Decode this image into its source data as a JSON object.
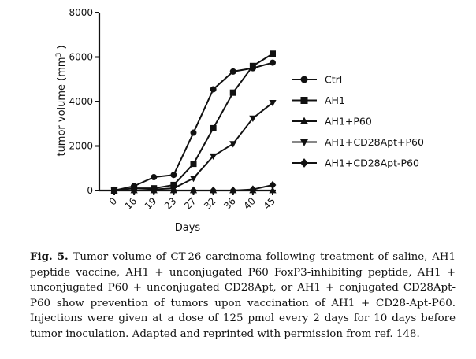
{
  "chart_data": {
    "type": "line",
    "xlabel": "Days",
    "ylabel": "tumor volume (mm",
    "ylabel_sup": "3",
    "ylabel_close": " )",
    "categories": [
      "0",
      "16",
      "19",
      "23",
      "27",
      "32",
      "36",
      "40",
      "45"
    ],
    "ylim": [
      0,
      8000
    ],
    "yticks": [
      0,
      2000,
      4000,
      6000,
      8000
    ],
    "ytick_labels": [
      "0",
      "2000",
      "4000",
      "6000",
      "8000"
    ],
    "legend_position": "right",
    "series": [
      {
        "name": "Ctrl",
        "marker": "circle",
        "values": [
          0,
          200,
          600,
          700,
          2600,
          4550,
          5350,
          5500,
          5750
        ]
      },
      {
        "name": "AH1",
        "marker": "square",
        "values": [
          0,
          100,
          100,
          250,
          1200,
          2800,
          4400,
          5600,
          6150
        ]
      },
      {
        "name": "AH1+P60",
        "marker": "triangle-up",
        "values": [
          0,
          0,
          0,
          0,
          0,
          0,
          0,
          0,
          0
        ]
      },
      {
        "name": "AH1+CD28Apt+P60",
        "marker": "triangle-down",
        "values": [
          0,
          0,
          50,
          100,
          550,
          1550,
          2100,
          3250,
          3950
        ]
      },
      {
        "name": "AH1+CD28Apt-P60",
        "marker": "diamond",
        "values": [
          0,
          0,
          0,
          0,
          0,
          0,
          0,
          50,
          250
        ]
      }
    ]
  },
  "caption": {
    "label": "Fig. 5.",
    "text": " Tumor volume of CT-26 carcinoma following treatment of saline, AH1 peptide vaccine, AH1 + unconjugated P60 FoxP3-inhibiting peptide, AH1 + unconjugated P60 + unconjugated CD28Apt, or AH1 + conjugated CD28Apt-P60 show prevention of tumors upon vaccination of AH1 + CD28-Apt-P60. Injections were given at a dose of 125 pmol every 2 days for 10 days before tumor inoculation. Adapted and reprinted with permission from ref. 148."
  }
}
